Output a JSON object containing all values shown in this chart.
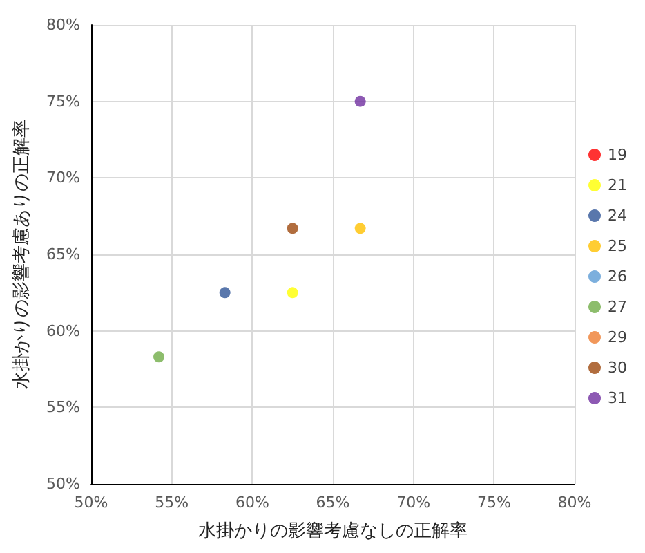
{
  "chart_data": {
    "type": "scatter",
    "xlabel": "水掛かりの影響考慮なしの正解率",
    "ylabel": "水掛かりの影響考慮ありの正解率",
    "xlim": [
      50,
      80
    ],
    "ylim": [
      50,
      80
    ],
    "xticks": [
      {
        "value": 50,
        "label": "50%"
      },
      {
        "value": 55,
        "label": "55%"
      },
      {
        "value": 60,
        "label": "60%"
      },
      {
        "value": 65,
        "label": "65%"
      },
      {
        "value": 70,
        "label": "70%"
      },
      {
        "value": 75,
        "label": "75%"
      },
      {
        "value": 80,
        "label": "80%"
      }
    ],
    "yticks": [
      {
        "value": 50,
        "label": "50%"
      },
      {
        "value": 55,
        "label": "55%"
      },
      {
        "value": 60,
        "label": "60%"
      },
      {
        "value": 65,
        "label": "65%"
      },
      {
        "value": 70,
        "label": "70%"
      },
      {
        "value": 75,
        "label": "75%"
      },
      {
        "value": 80,
        "label": "80%"
      }
    ],
    "grid": true,
    "legend": "right",
    "marker": "circle",
    "series": [
      {
        "name": "19",
        "color": "#ff0000",
        "x": [
          null
        ],
        "values": [
          null
        ]
      },
      {
        "name": "21",
        "color": "#ffff00",
        "x": [
          62.5
        ],
        "values": [
          62.5
        ]
      },
      {
        "name": "24",
        "color": "#2f5597",
        "x": [
          58.3
        ],
        "values": [
          62.5
        ]
      },
      {
        "name": "25",
        "color": "#ffc000",
        "x": [
          66.7
        ],
        "values": [
          66.7
        ]
      },
      {
        "name": "26",
        "color": "#5b9bd5",
        "x": [
          null
        ],
        "values": [
          null
        ]
      },
      {
        "name": "27",
        "color": "#70ad47",
        "x": [
          54.2
        ],
        "values": [
          58.3
        ]
      },
      {
        "name": "29",
        "color": "#ed7d31",
        "x": [
          null
        ],
        "values": [
          null
        ]
      },
      {
        "name": "30",
        "color": "#9e480e",
        "x": [
          62.5
        ],
        "values": [
          66.7
        ]
      },
      {
        "name": "31",
        "color": "#7030a0",
        "x": [
          66.7
        ],
        "values": [
          75
        ]
      }
    ]
  }
}
